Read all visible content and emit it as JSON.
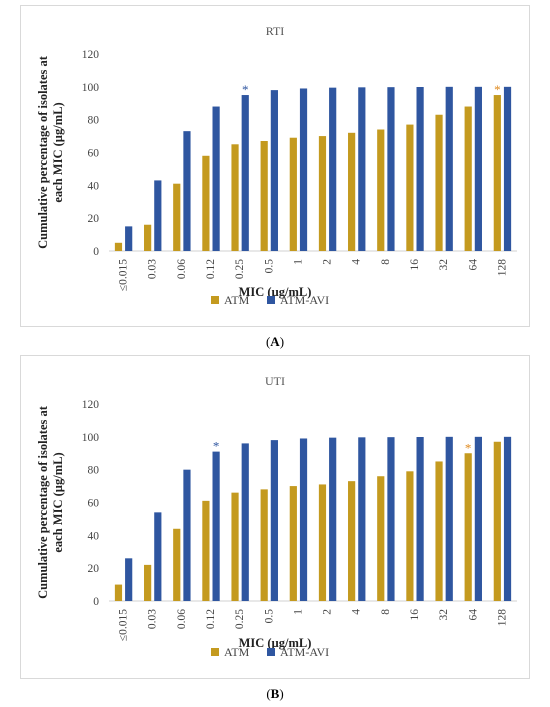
{
  "chart_data": [
    {
      "type": "bar",
      "panel_label": "A",
      "title": "RTI",
      "xlabel": "MIC (µg/mL)",
      "ylabel": "Cumulative percentage of isolates at each MIC (µg/mL)",
      "ylim": [
        0,
        120
      ],
      "yticks": [
        "0",
        "20",
        "40",
        "60",
        "80",
        "100",
        "120"
      ],
      "categories": [
        "≤0.015",
        "0.03",
        "0.06",
        "0.12",
        "0.25",
        "0.5",
        "1",
        "2",
        "4",
        "8",
        "16",
        "32",
        "64",
        "128"
      ],
      "series": [
        {
          "name": "ATM",
          "color": "#c49a1f",
          "values": [
            5,
            16,
            41,
            58,
            65,
            67,
            69,
            70,
            72,
            74,
            77,
            83,
            88,
            95
          ]
        },
        {
          "name": "ATM-AVI",
          "color": "#2f56a0",
          "values": [
            15,
            43,
            73,
            88,
            95,
            98,
            99,
            99.5,
            99.7,
            99.8,
            99.9,
            100,
            100,
            100
          ]
        }
      ],
      "annotations": [
        {
          "text": "*",
          "series": "ATM-AVI",
          "category": "0.25",
          "color": "#2f56a0"
        },
        {
          "text": "*",
          "series": "ATM",
          "category": "128",
          "color": "#e08a1e"
        }
      ],
      "grid": false,
      "legend": "bottom"
    },
    {
      "type": "bar",
      "panel_label": "B",
      "title": "UTI",
      "xlabel": "MIC (µg/mL)",
      "ylabel": "Cumulative percentage of isolates at each MIC (µg/mL)",
      "ylim": [
        0,
        120
      ],
      "yticks": [
        "0",
        "20",
        "40",
        "60",
        "80",
        "100",
        "120"
      ],
      "categories": [
        "≤0.015",
        "0.03",
        "0.06",
        "0.12",
        "0.25",
        "0.5",
        "1",
        "2",
        "4",
        "8",
        "16",
        "32",
        "64",
        "128"
      ],
      "series": [
        {
          "name": "ATM",
          "color": "#c49a1f",
          "values": [
            10,
            22,
            44,
            61,
            66,
            68,
            70,
            71,
            73,
            76,
            79,
            85,
            90,
            97
          ]
        },
        {
          "name": "ATM-AVI",
          "color": "#2f56a0",
          "values": [
            26,
            54,
            80,
            91,
            96,
            98,
            99,
            99.5,
            99.7,
            99.8,
            99.9,
            100,
            100,
            100
          ]
        }
      ],
      "annotations": [
        {
          "text": "*",
          "series": "ATM-AVI",
          "category": "0.12",
          "color": "#2f56a0"
        },
        {
          "text": "*",
          "series": "ATM",
          "category": "64",
          "color": "#e08a1e"
        }
      ],
      "grid": false,
      "legend": "bottom"
    }
  ]
}
